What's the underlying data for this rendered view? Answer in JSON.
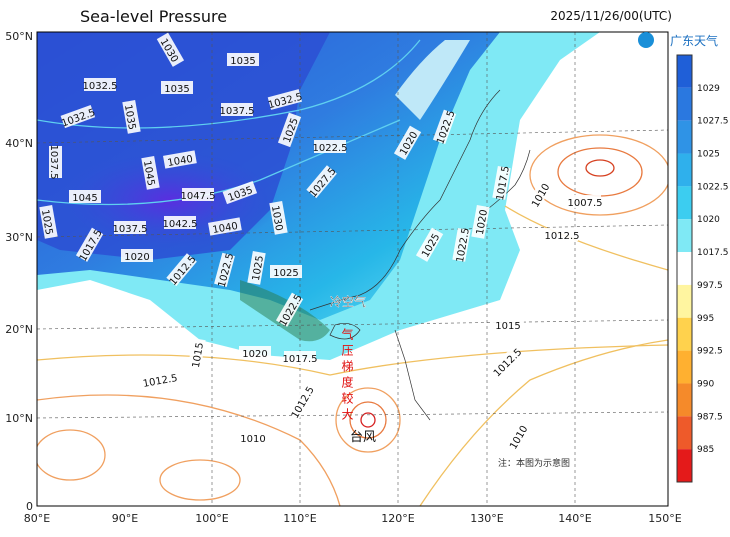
{
  "title": "Sea-level Pressure",
  "timestamp": "2025/11/26/00(UTC)",
  "logo": "广东天气",
  "colorbar": {
    "labels": [
      "1029",
      "1027.5",
      "1025",
      "1022.5",
      "1020",
      "1017.5",
      "997.5",
      "995",
      "992.5",
      "990",
      "987.5",
      "985"
    ]
  },
  "axes": {
    "lat_labels": [
      "50°N",
      "40°N",
      "30°N",
      "20°N",
      "10°N",
      "0"
    ],
    "lon_labels": [
      "80°E",
      "90°E",
      "100°E",
      "110°E",
      "120°E",
      "130°E",
      "140°E",
      "150°E"
    ]
  },
  "contour_labels": [
    "1030",
    "1035",
    "1032.5",
    "1035",
    "1032.5",
    "1035",
    "1037.5",
    "1032.5",
    "1025",
    "1022.5",
    "1020",
    "1022.5",
    "1037.5",
    "1040",
    "1045",
    "1045",
    "1047.5",
    "1035",
    "1030",
    "1027.5",
    "1025",
    "1017.5",
    "1037.5",
    "1042.5",
    "1040",
    "1020",
    "1012.5",
    "1022.5",
    "1025",
    "1025",
    "1022.5",
    "1025",
    "1022.5",
    "1020",
    "1017.5",
    "1010",
    "1007.5",
    "1012.5",
    "1020",
    "1017.5",
    "1015",
    "1012.5",
    "1012.5",
    "1015",
    "1012.5",
    "1010",
    "1010"
  ],
  "annotations": {
    "cold_air": "冷空气",
    "gradient": "气压梯度较大",
    "typhoon": "台风",
    "note": "注：本图为示意图"
  }
}
